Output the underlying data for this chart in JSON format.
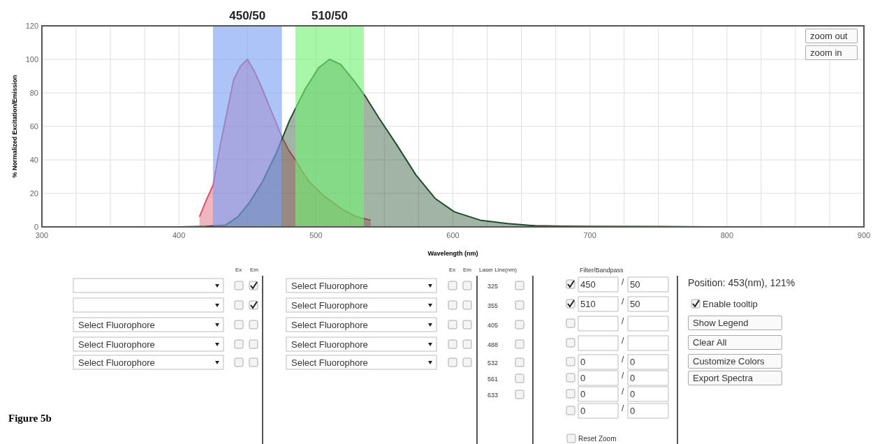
{
  "chart_data": [
    {
      "type": "area",
      "xlabel": "Wavelength (nm)",
      "ylabel": "% Normalized Excitation/Emission",
      "xlim": [
        300,
        900
      ],
      "xticks": [
        300,
        {
          "value": 325,
          "label": null
        },
        {
          "value": 350,
          "label": null
        },
        {
          "value": 375,
          "label": null
        },
        400,
        {
          "value": 425,
          "label": null
        },
        {
          "value": 450,
          "label": null
        },
        {
          "value": 475,
          "label": null
        },
        500,
        {
          "value": 525,
          "label": null
        },
        {
          "value": 550,
          "label": null
        },
        {
          "value": 575,
          "label": null
        },
        600,
        {
          "value": 625,
          "label": null
        },
        {
          "value": 650,
          "label": null
        },
        {
          "value": 675,
          "label": null
        },
        700,
        {
          "value": 725,
          "label": null
        },
        {
          "value": 750,
          "label": null
        },
        {
          "value": 775,
          "label": null
        },
        800,
        {
          "value": 825,
          "label": null
        },
        {
          "value": 850,
          "label": null
        },
        {
          "value": 875,
          "label": null
        },
        900
      ],
      "ylim": [
        0,
        120
      ],
      "yticks": [
        0,
        20,
        40,
        60,
        80,
        100,
        120
      ],
      "grid": true,
      "series": [
        {
          "color": "#d9506a",
          "x": [
            415,
            420,
            425,
            430,
            435,
            440,
            445,
            450,
            455,
            460,
            465,
            470,
            475,
            480,
            485,
            490,
            495,
            500,
            505,
            510,
            515,
            520,
            525,
            530,
            535,
            540
          ],
          "values": [
            6,
            16,
            25,
            48,
            68,
            88,
            96,
            100,
            93,
            84,
            74,
            64,
            54,
            46,
            40,
            33,
            27,
            23,
            19,
            16,
            13,
            10,
            8,
            6,
            5,
            4
          ]
        },
        {
          "color": "#1e4d2b",
          "x": [
            370,
            400,
            420,
            434,
            443,
            451,
            461,
            471,
            481,
            492,
            502,
            510,
            518,
            528,
            536,
            546,
            559,
            573,
            587,
            601,
            620,
            640,
            660,
            680,
            700,
            750,
            800
          ],
          "values": [
            0,
            0,
            0.3,
            1,
            6,
            14,
            27,
            44,
            64,
            82,
            95,
            100,
            97,
            87,
            78,
            65,
            49,
            31,
            17,
            9,
            4,
            2,
            0.7,
            0.4,
            0.3,
            0.2,
            0
          ]
        }
      ],
      "bands": [
        {
          "axis": "x",
          "from": 425,
          "to": 475,
          "label": "450/50",
          "color": "#7b9ff5"
        },
        {
          "axis": "x",
          "from": 485,
          "to": 535,
          "label": "510/50",
          "color": "#72f272"
        }
      ]
    },
    {
      "type": "other",
      "annotations": [
        "Ex",
        "Em",
        "Select Fluorophore",
        "Select Fluorophore",
        "Select Fluorophore",
        "Ex",
        "Em",
        "Select Fluorophore",
        "Select Fluorophore",
        "Select Fluorophore",
        "Select Fluorophore",
        "Select Fluorophore",
        "Laser Line(nm)",
        "325",
        "355",
        "405",
        "488",
        "532",
        "561",
        "633",
        "Filter/Bandpass",
        "450",
        "/",
        "50",
        "510",
        "/",
        "50",
        "/",
        "/",
        "0",
        "/",
        "0",
        "0",
        "/",
        "0",
        "0",
        "/",
        "0",
        "0",
        "/",
        "0",
        "Reset Zoom",
        "Position: 453(nm), 121%",
        "Enable tooltip",
        "Show Legend",
        "Clear All",
        "Customize Colors",
        "Export Spectra",
        "Figure 5b",
        "zoom out",
        "zoom in"
      ]
    }
  ]
}
